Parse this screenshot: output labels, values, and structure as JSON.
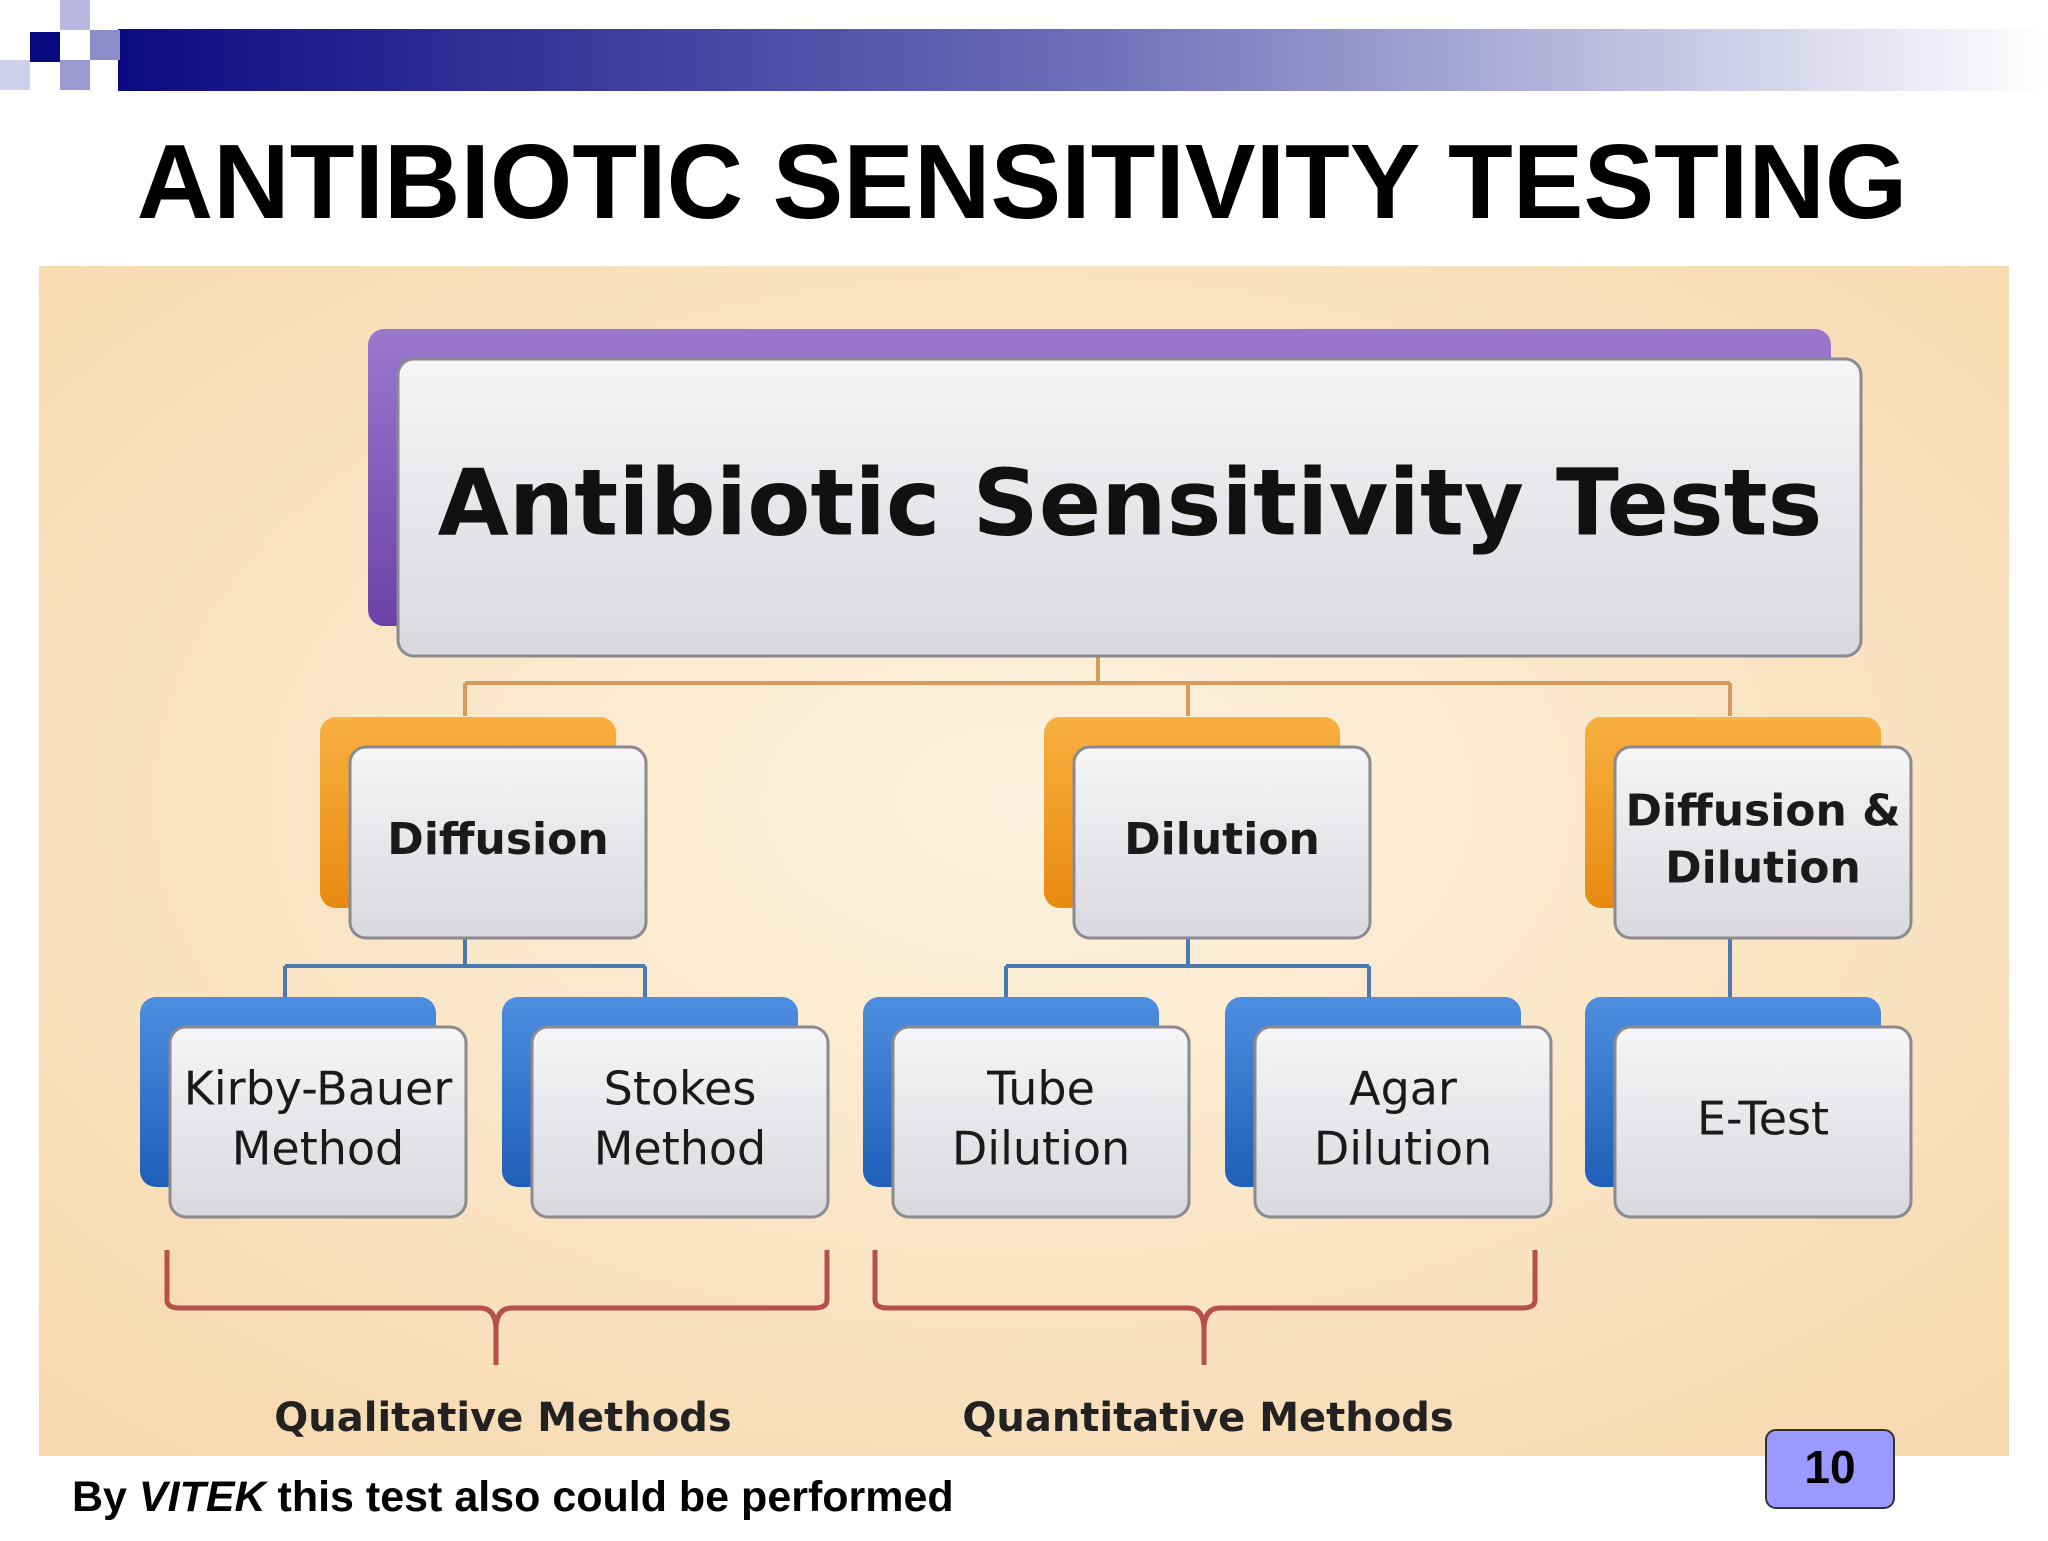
{
  "header": {
    "title": "ANTIBIOTIC SENSITIVITY TESTING"
  },
  "diagram": {
    "root": "Antibiotic Sensitivity Tests",
    "categories": [
      {
        "lines": [
          "Diffusion"
        ]
      },
      {
        "lines": [
          "Dilution"
        ]
      },
      {
        "lines": [
          "Diffusion &",
          "Dilution"
        ]
      }
    ],
    "methods": [
      {
        "lines": [
          "Kirby-Bauer",
          "Method"
        ]
      },
      {
        "lines": [
          "Stokes",
          "Method"
        ]
      },
      {
        "lines": [
          "Tube",
          "Dilution"
        ]
      },
      {
        "lines": [
          "Agar",
          "Dilution"
        ]
      },
      {
        "lines": [
          "E-Test"
        ]
      }
    ],
    "groups": [
      {
        "label": "Qualitative Methods"
      },
      {
        "label": "Quantitative Methods"
      }
    ]
  },
  "footer": {
    "prefix": "By",
    "emphasis": "VITEK",
    "suffix": "this test also could be performed"
  },
  "page_number": "10"
}
